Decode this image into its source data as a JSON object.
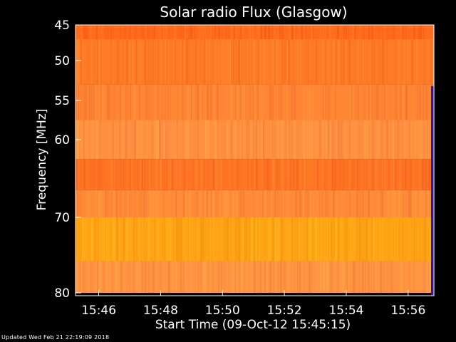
{
  "chart_data": {
    "type": "heatmap",
    "title": "Solar radio Flux (Glasgow)",
    "xlabel": "Start Time (09-Oct-12 15:45:15)",
    "ylabel": "Frequency [MHz]",
    "x_ticks": [
      "15:46",
      "15:48",
      "15:50",
      "15:52",
      "15:54",
      "15:56"
    ],
    "y_ticks": [
      "45",
      "50",
      "55",
      "60",
      "70",
      "80"
    ],
    "y_tick_values": [
      45,
      50,
      55,
      60,
      70,
      80
    ],
    "xlim": [
      "15:45:15",
      "15:56:50"
    ],
    "ylim": [
      45,
      80
    ],
    "frequency_bands_mhz": [
      {
        "from": 45.0,
        "to": 47.0,
        "color": "#ff6a1c"
      },
      {
        "from": 47.0,
        "to": 53.0,
        "color": "#ff7a26"
      },
      {
        "from": 53.0,
        "to": 57.5,
        "color": "#ff8434"
      },
      {
        "from": 57.5,
        "to": 62.5,
        "color": "#ff9040"
      },
      {
        "from": 62.5,
        "to": 66.5,
        "color": "#ff7424"
      },
      {
        "from": 66.5,
        "to": 70.0,
        "color": "#ff8a38"
      },
      {
        "from": 70.0,
        "to": 75.8,
        "color": "#ffa414"
      },
      {
        "from": 75.8,
        "to": 80.0,
        "color": "#ff9442"
      }
    ],
    "colors": {
      "background": "#000000",
      "text": "#ffffff",
      "edge_high": "#3a12a0"
    }
  },
  "footer": {
    "updated": "Updated Wed Feb 21 22:19:09 2018"
  }
}
